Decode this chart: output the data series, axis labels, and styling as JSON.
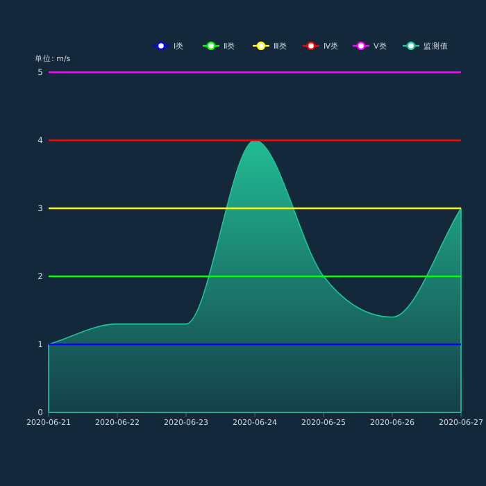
{
  "chart_data": {
    "type": "line",
    "ylabel": "单位: m/s",
    "categories": [
      "2020-06-21",
      "2020-06-22",
      "2020-06-23",
      "2020-06-24",
      "2020-06-25",
      "2020-06-26",
      "2020-06-27"
    ],
    "series": [
      {
        "name": "Ⅰ类",
        "color": "#0000ff",
        "values": [
          1,
          1,
          1,
          1,
          1,
          1,
          1
        ]
      },
      {
        "name": "Ⅱ类",
        "color": "#00ff00",
        "values": [
          2,
          2,
          2,
          2,
          2,
          2,
          2
        ]
      },
      {
        "name": "Ⅲ类",
        "color": "#ffff00",
        "values": [
          3,
          3,
          3,
          3,
          3,
          3,
          3
        ]
      },
      {
        "name": "Ⅳ类",
        "color": "#ff0000",
        "values": [
          4,
          4,
          4,
          4,
          4,
          4,
          4
        ]
      },
      {
        "name": "Ⅴ类",
        "color": "#ff00ff",
        "values": [
          5,
          5,
          5,
          5,
          5,
          5,
          5
        ]
      },
      {
        "name": "监测值",
        "type": "area",
        "color": "#22c398",
        "values": [
          1.0,
          1.3,
          1.3,
          4.0,
          2.0,
          1.4,
          3.0
        ]
      }
    ],
    "ylim": [
      0,
      5
    ],
    "yticks": [
      0,
      1,
      2,
      3,
      4,
      5
    ],
    "legend": "top right"
  }
}
